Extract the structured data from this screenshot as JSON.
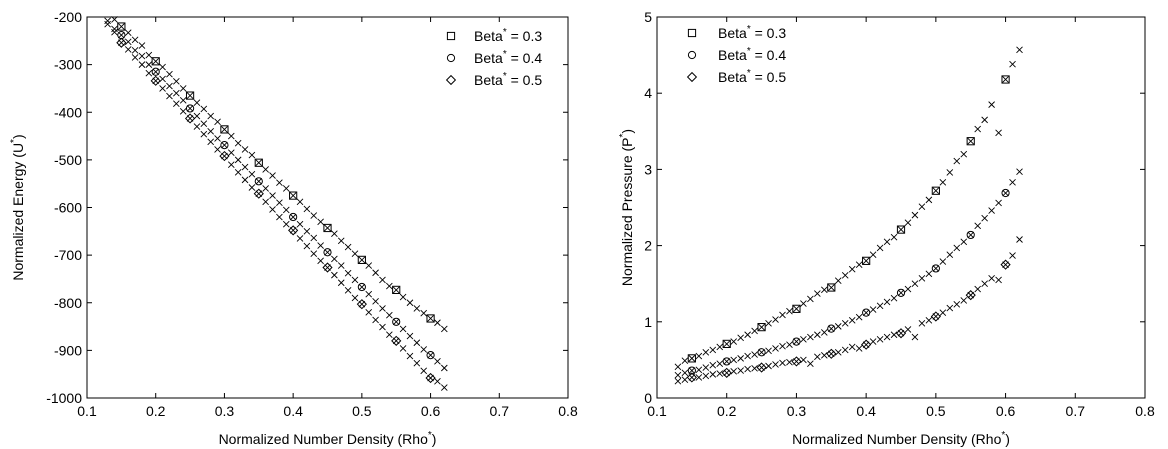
{
  "chart_data": [
    {
      "type": "scatter",
      "title": "",
      "xlabel": "Normalized Number Density (Rho",
      "xlabel_sup": "*",
      "xlabel_suffix": ")",
      "ylabel": "Normalized Energy (U",
      "ylabel_sup": "*",
      "ylabel_suffix": ")",
      "xlim": [
        0.1,
        0.8
      ],
      "ylim": [
        -1000,
        -200
      ],
      "xticks": [
        0.1,
        0.2,
        0.3,
        0.4,
        0.5,
        0.6,
        0.7,
        0.8
      ],
      "xtick_labels": [
        "0.1",
        "0.2",
        "0.3",
        "0.4",
        "0.5",
        "0.6",
        "0.7",
        "0.8"
      ],
      "yticks": [
        -1000,
        -900,
        -800,
        -700,
        -600,
        -500,
        -400,
        -300,
        -200
      ],
      "ytick_labels": [
        "-1000",
        "-900",
        "-800",
        "-700",
        "-600",
        "-500",
        "-400",
        "-300",
        "-200"
      ],
      "grid": false,
      "legend_position": "top-right",
      "series": [
        {
          "name": "Beta",
          "name_sup": "*",
          "name_suffix": " = 0.3",
          "marker": "square",
          "x": [
            0.15,
            0.2,
            0.25,
            0.3,
            0.35,
            0.4,
            0.45,
            0.5,
            0.55,
            0.6
          ],
          "y": [
            -220,
            -293,
            -365,
            -436,
            -506,
            -575,
            -643,
            -710,
            -773,
            -833
          ]
        },
        {
          "name": "Beta",
          "name_sup": "*",
          "name_suffix": " = 0.4",
          "marker": "circle",
          "x": [
            0.15,
            0.2,
            0.25,
            0.3,
            0.35,
            0.4,
            0.45,
            0.5,
            0.55,
            0.6
          ],
          "y": [
            -238,
            -315,
            -392,
            -469,
            -545,
            -620,
            -694,
            -767,
            -840,
            -910
          ]
        },
        {
          "name": "Beta",
          "name_sup": "*",
          "name_suffix": " = 0.5",
          "marker": "diamond",
          "x": [
            0.15,
            0.2,
            0.25,
            0.3,
            0.35,
            0.4,
            0.45,
            0.5,
            0.55,
            0.6
          ],
          "y": [
            -254,
            -334,
            -413,
            -492,
            -571,
            -648,
            -726,
            -803,
            -880,
            -958
          ]
        }
      ],
      "simulation_series": [
        {
          "marker": "x",
          "x": [
            0.13,
            0.14,
            0.16,
            0.17,
            0.18,
            0.19,
            0.21,
            0.22,
            0.23,
            0.24,
            0.26,
            0.27,
            0.28,
            0.29,
            0.31,
            0.32,
            0.33,
            0.34,
            0.36,
            0.37,
            0.38,
            0.39,
            0.41,
            0.42,
            0.43,
            0.44,
            0.46,
            0.47,
            0.48,
            0.49,
            0.51,
            0.52,
            0.53,
            0.54,
            0.56,
            0.57,
            0.58,
            0.59,
            0.61,
            0.62
          ],
          "y": [
            -199,
            -205,
            -233,
            -248,
            -260,
            -280,
            -305,
            -320,
            -335,
            -350,
            -380,
            -393,
            -408,
            -420,
            -450,
            -465,
            -478,
            -490,
            -520,
            -533,
            -548,
            -560,
            -588,
            -603,
            -617,
            -630,
            -655,
            -670,
            -683,
            -697,
            -722,
            -737,
            -752,
            -765,
            -788,
            -800,
            -812,
            -822,
            -842,
            -855
          ]
        },
        {
          "marker": "x",
          "x": [
            0.13,
            0.14,
            0.16,
            0.17,
            0.18,
            0.19,
            0.21,
            0.22,
            0.23,
            0.24,
            0.26,
            0.27,
            0.28,
            0.29,
            0.31,
            0.32,
            0.33,
            0.34,
            0.36,
            0.37,
            0.38,
            0.39,
            0.41,
            0.42,
            0.43,
            0.44,
            0.46,
            0.47,
            0.48,
            0.49,
            0.51,
            0.52,
            0.53,
            0.54,
            0.56,
            0.57,
            0.58,
            0.59,
            0.61,
            0.62
          ],
          "y": [
            -208,
            -225,
            -252,
            -270,
            -282,
            -300,
            -330,
            -345,
            -360,
            -375,
            -408,
            -424,
            -440,
            -455,
            -485,
            -500,
            -515,
            -530,
            -560,
            -575,
            -590,
            -605,
            -635,
            -650,
            -664,
            -680,
            -708,
            -722,
            -738,
            -752,
            -782,
            -797,
            -812,
            -826,
            -855,
            -870,
            -884,
            -898,
            -923,
            -937
          ]
        },
        {
          "marker": "x",
          "x": [
            0.13,
            0.14,
            0.16,
            0.17,
            0.18,
            0.19,
            0.21,
            0.22,
            0.23,
            0.24,
            0.26,
            0.27,
            0.28,
            0.29,
            0.31,
            0.32,
            0.33,
            0.34,
            0.36,
            0.37,
            0.38,
            0.39,
            0.41,
            0.42,
            0.43,
            0.44,
            0.46,
            0.47,
            0.48,
            0.49,
            0.51,
            0.52,
            0.53,
            0.54,
            0.56,
            0.57,
            0.58,
            0.59,
            0.61,
            0.62
          ],
          "y": [
            -215,
            -232,
            -268,
            -285,
            -300,
            -318,
            -350,
            -366,
            -382,
            -398,
            -430,
            -446,
            -462,
            -478,
            -510,
            -526,
            -542,
            -558,
            -588,
            -604,
            -620,
            -635,
            -665,
            -681,
            -697,
            -712,
            -742,
            -758,
            -774,
            -790,
            -820,
            -836,
            -851,
            -867,
            -896,
            -912,
            -927,
            -943,
            -965,
            -978
          ]
        }
      ]
    },
    {
      "type": "scatter",
      "title": "",
      "xlabel": "Normalized Number Density (Rho",
      "xlabel_sup": "*",
      "xlabel_suffix": ")",
      "ylabel": "Normalized Pressure (P",
      "ylabel_sup": "*",
      "ylabel_suffix": ")",
      "xlim": [
        0.1,
        0.8
      ],
      "ylim": [
        0,
        5
      ],
      "xticks": [
        0.1,
        0.2,
        0.3,
        0.4,
        0.5,
        0.6,
        0.7,
        0.8
      ],
      "xtick_labels": [
        "0.1",
        "0.2",
        "0.3",
        "0.4",
        "0.5",
        "0.6",
        "0.7",
        "0.8"
      ],
      "yticks": [
        0,
        1,
        2,
        3,
        4,
        5
      ],
      "ytick_labels": [
        "0",
        "1",
        "2",
        "3",
        "4",
        "5"
      ],
      "grid": false,
      "legend_position": "top-left",
      "series": [
        {
          "name": "Beta",
          "name_sup": "*",
          "name_suffix": " = 0.3",
          "marker": "square",
          "x": [
            0.15,
            0.2,
            0.25,
            0.3,
            0.35,
            0.4,
            0.45,
            0.5,
            0.55,
            0.6
          ],
          "y": [
            0.52,
            0.71,
            0.93,
            1.17,
            1.45,
            1.8,
            2.21,
            2.72,
            3.37,
            4.18
          ]
        },
        {
          "name": "Beta",
          "name_sup": "*",
          "name_suffix": " = 0.4",
          "marker": "circle",
          "x": [
            0.15,
            0.2,
            0.25,
            0.3,
            0.35,
            0.4,
            0.45,
            0.5,
            0.55,
            0.6
          ],
          "y": [
            0.36,
            0.48,
            0.6,
            0.74,
            0.91,
            1.12,
            1.38,
            1.7,
            2.14,
            2.69
          ]
        },
        {
          "name": "Beta",
          "name_sup": "*",
          "name_suffix": " = 0.5",
          "marker": "diamond",
          "x": [
            0.15,
            0.2,
            0.25,
            0.3,
            0.35,
            0.4,
            0.45,
            0.5,
            0.55,
            0.6
          ],
          "y": [
            0.27,
            0.33,
            0.4,
            0.48,
            0.58,
            0.7,
            0.85,
            1.07,
            1.35,
            1.75
          ]
        }
      ],
      "simulation_series": [
        {
          "marker": "x",
          "x": [
            0.13,
            0.14,
            0.16,
            0.17,
            0.18,
            0.19,
            0.21,
            0.22,
            0.23,
            0.24,
            0.26,
            0.27,
            0.28,
            0.29,
            0.31,
            0.32,
            0.33,
            0.34,
            0.36,
            0.37,
            0.38,
            0.39,
            0.41,
            0.42,
            0.43,
            0.44,
            0.46,
            0.47,
            0.48,
            0.49,
            0.51,
            0.52,
            0.53,
            0.54,
            0.56,
            0.57,
            0.58,
            0.59,
            0.61,
            0.62
          ],
          "y": [
            0.41,
            0.49,
            0.55,
            0.6,
            0.63,
            0.67,
            0.74,
            0.79,
            0.83,
            0.88,
            0.98,
            1.03,
            1.09,
            1.14,
            1.24,
            1.3,
            1.37,
            1.42,
            1.54,
            1.61,
            1.69,
            1.75,
            1.88,
            1.97,
            2.05,
            2.11,
            2.3,
            2.4,
            2.51,
            2.6,
            2.83,
            2.96,
            3.11,
            3.2,
            3.53,
            3.65,
            3.85,
            3.48,
            4.38,
            4.57
          ]
        },
        {
          "marker": "x",
          "x": [
            0.13,
            0.14,
            0.16,
            0.17,
            0.18,
            0.19,
            0.21,
            0.22,
            0.23,
            0.24,
            0.26,
            0.27,
            0.28,
            0.29,
            0.31,
            0.32,
            0.33,
            0.34,
            0.36,
            0.37,
            0.38,
            0.39,
            0.41,
            0.42,
            0.43,
            0.44,
            0.46,
            0.47,
            0.48,
            0.49,
            0.51,
            0.52,
            0.53,
            0.54,
            0.56,
            0.57,
            0.58,
            0.59,
            0.61,
            0.62
          ],
          "y": [
            0.3,
            0.33,
            0.37,
            0.4,
            0.43,
            0.45,
            0.5,
            0.52,
            0.55,
            0.57,
            0.62,
            0.65,
            0.68,
            0.7,
            0.77,
            0.8,
            0.83,
            0.86,
            0.94,
            0.98,
            1.02,
            1.06,
            1.16,
            1.21,
            1.26,
            1.31,
            1.43,
            1.5,
            1.57,
            1.63,
            1.79,
            1.88,
            1.97,
            2.05,
            2.26,
            2.36,
            2.46,
            2.56,
            2.83,
            2.97
          ]
        },
        {
          "marker": "x",
          "x": [
            0.13,
            0.14,
            0.16,
            0.17,
            0.18,
            0.19,
            0.21,
            0.22,
            0.23,
            0.24,
            0.26,
            0.27,
            0.28,
            0.29,
            0.31,
            0.32,
            0.33,
            0.34,
            0.36,
            0.37,
            0.38,
            0.39,
            0.41,
            0.42,
            0.43,
            0.44,
            0.46,
            0.47,
            0.48,
            0.49,
            0.51,
            0.52,
            0.53,
            0.54,
            0.56,
            0.57,
            0.58,
            0.59,
            0.61,
            0.62
          ],
          "y": [
            0.22,
            0.24,
            0.27,
            0.29,
            0.31,
            0.32,
            0.35,
            0.36,
            0.38,
            0.39,
            0.42,
            0.44,
            0.46,
            0.47,
            0.5,
            0.45,
            0.54,
            0.56,
            0.6,
            0.63,
            0.67,
            0.65,
            0.74,
            0.77,
            0.8,
            0.83,
            0.9,
            0.8,
            0.98,
            1.02,
            1.12,
            1.18,
            1.23,
            1.28,
            1.43,
            1.5,
            1.57,
            1.55,
            1.87,
            2.08
          ]
        }
      ]
    }
  ]
}
